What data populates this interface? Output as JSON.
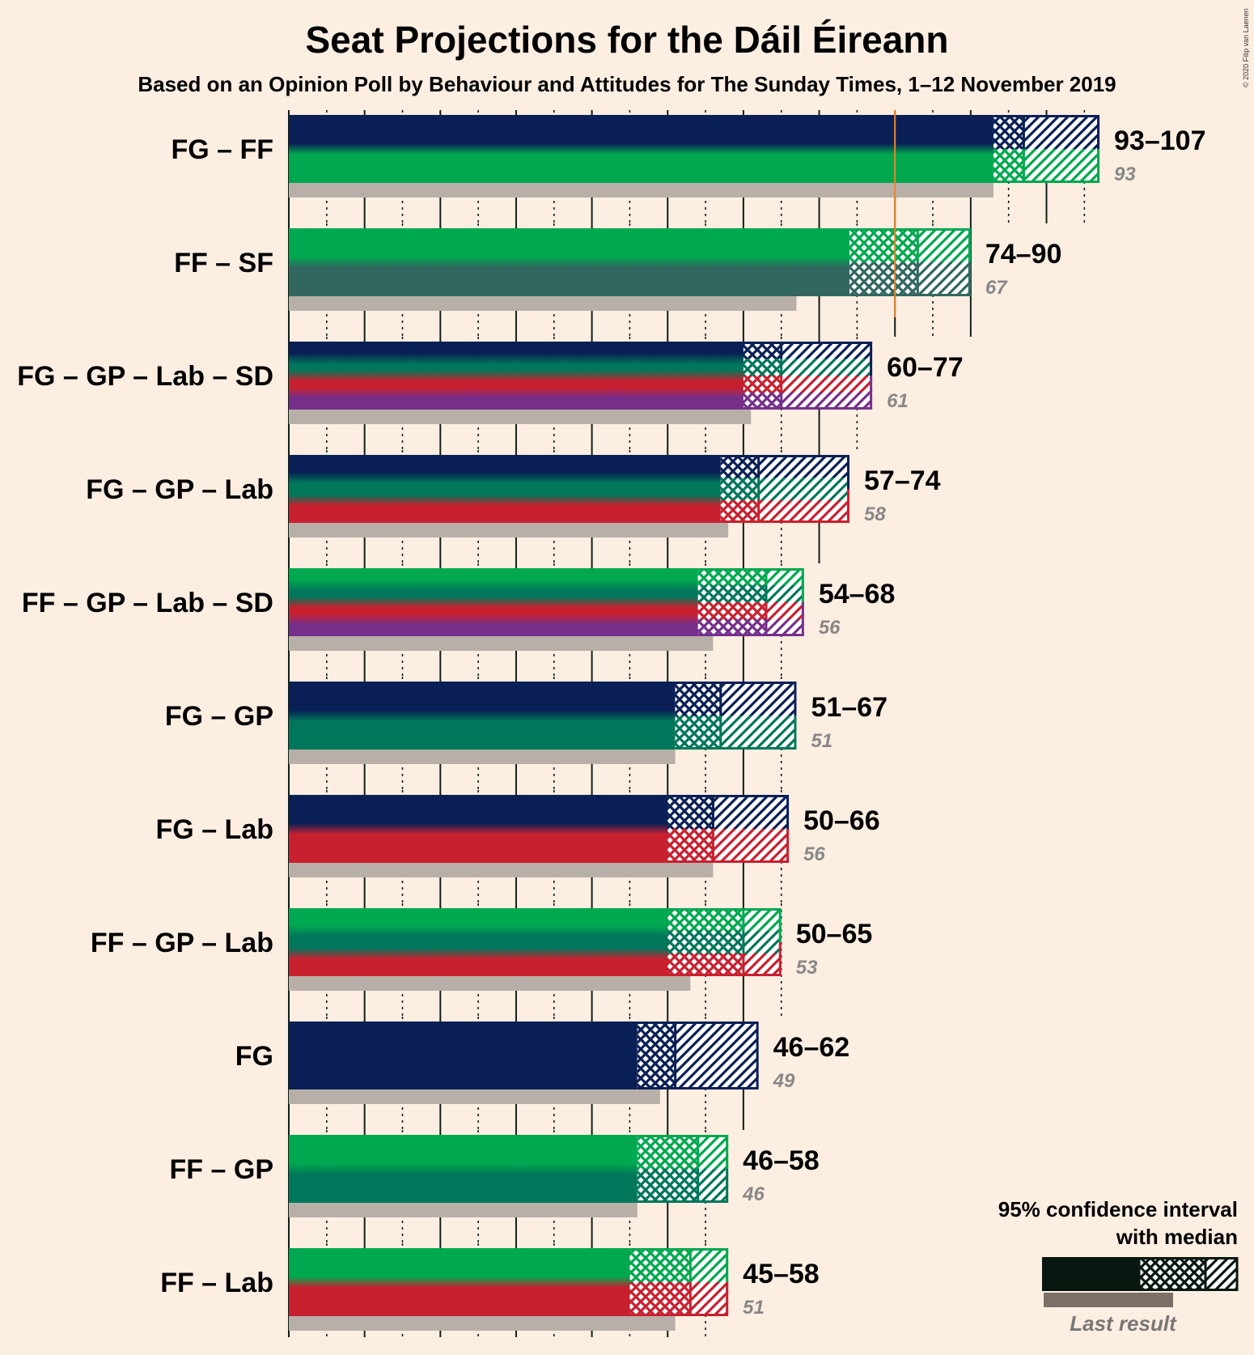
{
  "title": "Seat Projections for the Dáil Éireann",
  "subtitle": "Based on an Opinion Poll by Behaviour and Attitudes for The Sunday Times, 1–12 November 2019",
  "copyright": "© 2020 Filip van Laenen",
  "legend": {
    "line1": "95% confidence interval",
    "line2": "with median",
    "last_result": "Last result"
  },
  "colors": {
    "background": "#fdeee2",
    "FG": "#0a1f55",
    "FF": "#00a84f",
    "SF": "#326760",
    "GP": "#00765a",
    "Lab": "#c8202f",
    "SD": "#752f8b",
    "majority_line": "#e8852a",
    "last_result_bar": "#b8b0a8",
    "legend_dark": "#081810"
  },
  "chart_data": {
    "type": "bar",
    "orientation": "horizontal",
    "x_range": [
      0,
      107
    ],
    "majority": 80,
    "categories": [
      "FG – FF",
      "FF – SF",
      "FG – GP – Lab – SD",
      "FG – GP – Lab",
      "FF – GP – Lab – SD",
      "FG – GP",
      "FG – Lab",
      "FF – GP – Lab",
      "FG",
      "FF – GP",
      "FF – Lab"
    ],
    "series": [
      {
        "label": "FG – FF",
        "parties": [
          "FG",
          "FF"
        ],
        "low": 93,
        "median": 97,
        "high": 107,
        "last": 93,
        "range_text": "93–107",
        "last_text": "93"
      },
      {
        "label": "FF – SF",
        "parties": [
          "FF",
          "SF"
        ],
        "low": 74,
        "median": 83,
        "high": 90,
        "last": 67,
        "range_text": "74–90",
        "last_text": "67"
      },
      {
        "label": "FG – GP – Lab – SD",
        "parties": [
          "FG",
          "GP",
          "Lab",
          "SD"
        ],
        "low": 60,
        "median": 65,
        "high": 77,
        "last": 61,
        "range_text": "60–77",
        "last_text": "61"
      },
      {
        "label": "FG – GP – Lab",
        "parties": [
          "FG",
          "GP",
          "Lab"
        ],
        "low": 57,
        "median": 62,
        "high": 74,
        "last": 58,
        "range_text": "57–74",
        "last_text": "58"
      },
      {
        "label": "FF – GP – Lab – SD",
        "parties": [
          "FF",
          "GP",
          "Lab",
          "SD"
        ],
        "low": 54,
        "median": 63,
        "high": 68,
        "last": 56,
        "range_text": "54–68",
        "last_text": "56"
      },
      {
        "label": "FG – GP",
        "parties": [
          "FG",
          "GP"
        ],
        "low": 51,
        "median": 57,
        "high": 67,
        "last": 51,
        "range_text": "51–67",
        "last_text": "51"
      },
      {
        "label": "FG – Lab",
        "parties": [
          "FG",
          "Lab"
        ],
        "low": 50,
        "median": 56,
        "high": 66,
        "last": 56,
        "range_text": "50–66",
        "last_text": "56"
      },
      {
        "label": "FF – GP – Lab",
        "parties": [
          "FF",
          "GP",
          "Lab"
        ],
        "low": 50,
        "median": 60,
        "high": 65,
        "last": 53,
        "range_text": "50–65",
        "last_text": "53"
      },
      {
        "label": "FG",
        "parties": [
          "FG"
        ],
        "low": 46,
        "median": 51,
        "high": 62,
        "last": 49,
        "range_text": "46–62",
        "last_text": "49"
      },
      {
        "label": "FF – GP",
        "parties": [
          "FF",
          "GP"
        ],
        "low": 46,
        "median": 54,
        "high": 58,
        "last": 46,
        "range_text": "46–58",
        "last_text": "46"
      },
      {
        "label": "FF – Lab",
        "parties": [
          "FF",
          "Lab"
        ],
        "low": 45,
        "median": 53,
        "high": 58,
        "last": 51,
        "range_text": "45–58",
        "last_text": "51"
      }
    ]
  }
}
